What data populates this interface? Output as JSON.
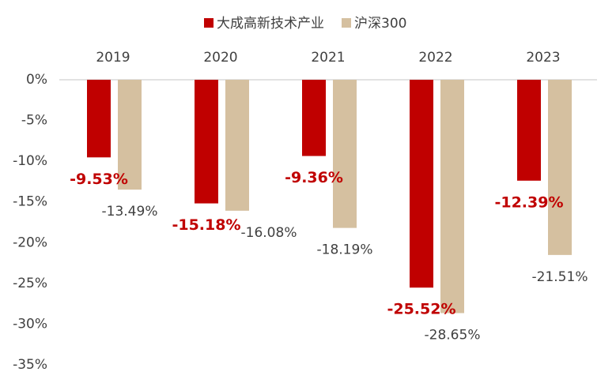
{
  "chart_data": {
    "type": "bar",
    "categories": [
      "2019",
      "2020",
      "2021",
      "2022",
      "2023"
    ],
    "series": [
      {
        "name": "大成高新技术产业",
        "color": "#c00000",
        "values": [
          -9.53,
          -15.18,
          -9.36,
          -25.52,
          -12.39
        ],
        "value_labels": [
          "-9.53%",
          "-15.18%",
          "-9.36%",
          "-25.52%",
          "-12.39%"
        ]
      },
      {
        "name": "沪深300",
        "color": "#d5c0a0",
        "values": [
          -13.49,
          -16.08,
          -18.19,
          -28.65,
          -21.51
        ],
        "value_labels": [
          "-13.49%",
          "-16.08%",
          "-18.19%",
          "-28.65%",
          "-21.51%"
        ]
      }
    ],
    "ylim": [
      0,
      -35
    ],
    "yticks": [
      {
        "value": 0,
        "label": "0%"
      },
      {
        "value": -5,
        "label": "-5%"
      },
      {
        "value": -10,
        "label": "-10%"
      },
      {
        "value": -15,
        "label": "-15%"
      },
      {
        "value": -20,
        "label": "-20%"
      },
      {
        "value": -25,
        "label": "-25%"
      },
      {
        "value": -30,
        "label": "-30%"
      },
      {
        "value": -35,
        "label": "-35%"
      }
    ],
    "legend": "top",
    "grid": false
  }
}
